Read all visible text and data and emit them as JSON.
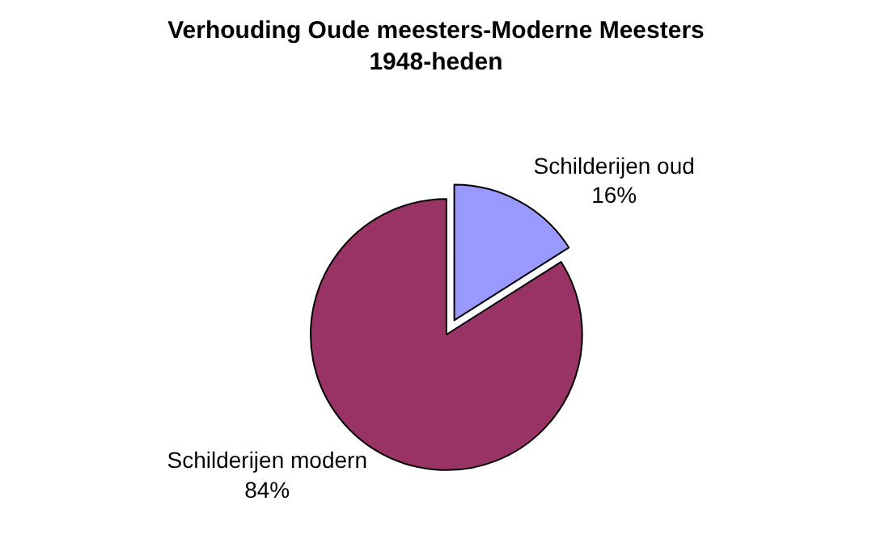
{
  "chart_data": {
    "type": "pie",
    "title": "Verhouding Oude meesters-Moderne Meesters 1948-heden",
    "categories": [
      "Schilderijen oud",
      "Schilderijen modern"
    ],
    "values": [
      16,
      84
    ],
    "colors": [
      "#9999ff",
      "#993366"
    ],
    "value_labels": [
      "16%",
      "84%"
    ],
    "legend": false
  }
}
